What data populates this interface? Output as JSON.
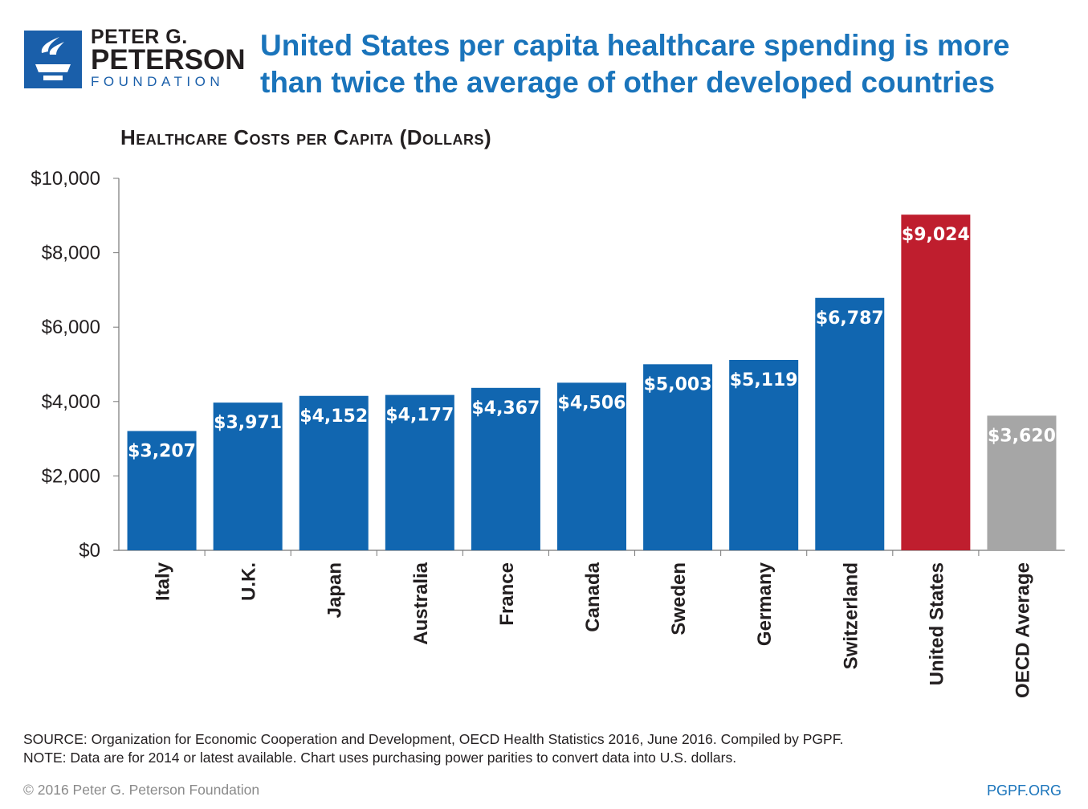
{
  "logo": {
    "line1": "PETER G.",
    "line2": "PETERSON",
    "line3": "FOUNDATION"
  },
  "headline": "United States per capita healthcare spending is more than twice the average of other developed countries",
  "chart_data": {
    "type": "bar",
    "title": "Healthcare Costs per Capita (Dollars)",
    "categories": [
      "Italy",
      "U.K.",
      "Japan",
      "Australia",
      "France",
      "Canada",
      "Sweden",
      "Germany",
      "Switzerland",
      "United States",
      "OECD Average"
    ],
    "values": [
      3207,
      3971,
      4152,
      4177,
      4367,
      4506,
      5003,
      5119,
      6787,
      9024,
      3620
    ],
    "data_labels": [
      "$3,207",
      "$3,971",
      "$4,152",
      "$4,177",
      "$4,367",
      "$4,506",
      "$5,003",
      "$5,119",
      "$6,787",
      "$9,024",
      "$3,620"
    ],
    "colors": [
      "#1166b0",
      "#1166b0",
      "#1166b0",
      "#1166b0",
      "#1166b0",
      "#1166b0",
      "#1166b0",
      "#1166b0",
      "#1166b0",
      "#bf1e2e",
      "#a6a6a6"
    ],
    "ylim": [
      0,
      10000
    ],
    "yticks": [
      0,
      2000,
      4000,
      6000,
      8000,
      10000
    ],
    "ytick_labels": [
      "$0",
      "$2,000",
      "$4,000",
      "$6,000",
      "$8,000",
      "$10,000"
    ],
    "xlabel": "",
    "ylabel": "",
    "grid": false,
    "legend": "none"
  },
  "footer": {
    "source": "SOURCE: Organization for Economic Cooperation and Development, OECD Health Statistics 2016, June 2016. Compiled by PGPF.",
    "note": "NOTE: Data are for 2014 or latest available. Chart uses purchasing power parities to convert data into U.S. dollars.",
    "copyright": "© 2016 Peter G. Peterson Foundation",
    "url": "PGPF.ORG"
  }
}
